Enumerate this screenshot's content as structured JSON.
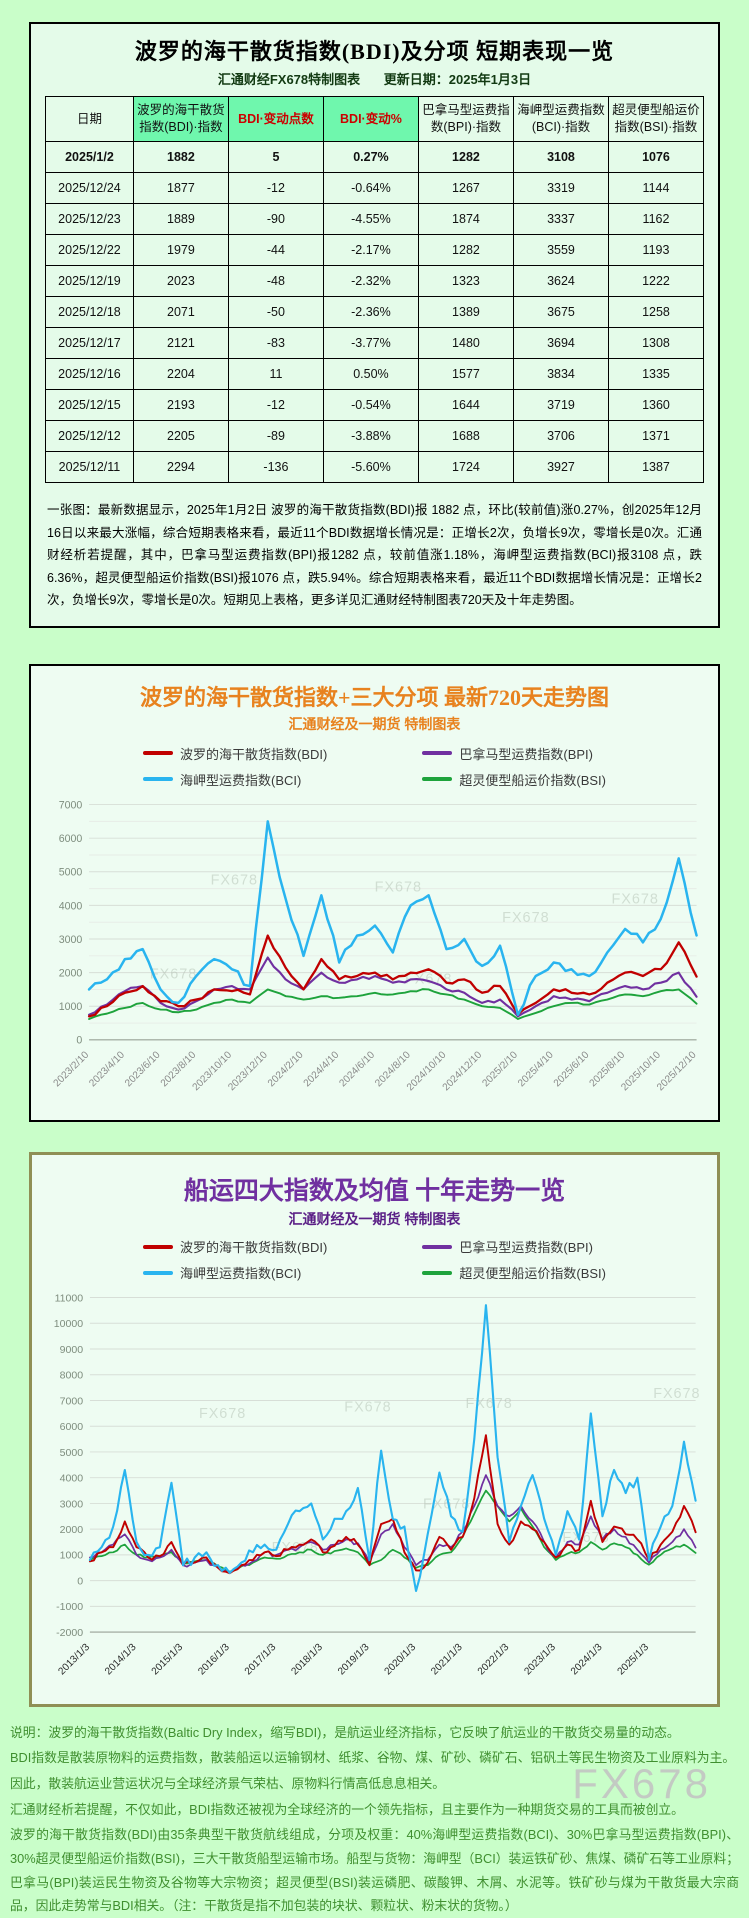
{
  "page": {
    "watermark": "FX678",
    "background": "#c9fec9"
  },
  "summary_card": {
    "title": "波罗的海干散货指数(BDI)及分项  短期表现一览",
    "subtitle_left": "汇通财经FX678特制图表",
    "subtitle_right": "更新日期：2025年1月3日",
    "table": {
      "headers": [
        "日期",
        "波罗的海干散货指数(BDI)·指数",
        "BDI·变动点数",
        "BDI·变动%",
        "巴拿马型运费指数(BPI)·指数",
        "海岬型运费指数(BCI)·指数",
        "超灵便型船运价指数(BSI)·指数"
      ],
      "highlight_green": "#6ff7ad",
      "rows": [
        {
          "cells": [
            "2025/1/2",
            "1882",
            "5",
            "0.27%",
            "1282",
            "3108",
            "1076"
          ]
        },
        {
          "cells": [
            "2025/12/24",
            "1877",
            "-12",
            "-0.64%",
            "1267",
            "3319",
            "1144"
          ]
        },
        {
          "cells": [
            "2025/12/23",
            "1889",
            "-90",
            "-4.55%",
            "1874",
            "3337",
            "1162"
          ]
        },
        {
          "cells": [
            "2025/12/22",
            "1979",
            "-44",
            "-2.17%",
            "1282",
            "3559",
            "1193"
          ]
        },
        {
          "cells": [
            "2025/12/19",
            "2023",
            "-48",
            "-2.32%",
            "1323",
            "3624",
            "1222"
          ]
        },
        {
          "cells": [
            "2025/12/18",
            "2071",
            "-50",
            "-2.36%",
            "1389",
            "3675",
            "1258"
          ]
        },
        {
          "cells": [
            "2025/12/17",
            "2121",
            "-83",
            "-3.77%",
            "1480",
            "3694",
            "1308"
          ]
        },
        {
          "cells": [
            "2025/12/16",
            "2204",
            "11",
            "0.50%",
            "1577",
            "3834",
            "1335"
          ]
        },
        {
          "cells": [
            "2025/12/15",
            "2193",
            "-12",
            "-0.54%",
            "1644",
            "3719",
            "1360"
          ]
        },
        {
          "cells": [
            "2025/12/12",
            "2205",
            "-89",
            "-3.88%",
            "1688",
            "3706",
            "1371"
          ]
        },
        {
          "cells": [
            "2025/12/11",
            "2294",
            "-136",
            "-5.60%",
            "1724",
            "3927",
            "1387"
          ]
        }
      ]
    },
    "paragraph": "一张图：最新数据显示，2025年1月2日 波罗的海干散货指数(BDI)报 1882 点，环比(较前值)涨0.27%，创2025年12月16日以来最大涨幅，综合短期表格来看，最近11个BDI数据增长情况是：正增长2次，负增长9次，零增长是0次。汇通财经析若提醒，其中，巴拿马型运费指数(BPI)报1282 点，较前值涨1.18%，海岬型运费指数(BCI)报3108 点，跌6.36%，超灵便型船运价指数(BSI)报1076 点，跌5.94%。综合短期表格来看，最近11个BDI数据增长情况是：正增长2次，负增长9次，零增长是0次。短期见上表格，更多详见汇通财经特制图表720天及十年走势图。"
  },
  "chart_data": [
    {
      "type": "line",
      "title": "波罗的海干散货指数+三大分项  最新720天走势图",
      "subtitle": "汇通财经及一期货  特制图表",
      "ylim": [
        0,
        7000
      ],
      "ytick_step": 1000,
      "grid": true,
      "legend_position": "top",
      "x_label_every": 2,
      "x_labels": [
        "2023/2/10",
        "2023/4/10",
        "2023/6/10",
        "2023/8/10",
        "2023/10/10",
        "2023/12/10",
        "2024/2/10",
        "2024/4/10",
        "2024/6/10",
        "2024/8/10",
        "2024/10/10",
        "2024/12/10",
        "2025/2/10",
        "2025/4/10",
        "2025/6/10",
        "2025/8/10",
        "2025/10/10",
        "2025/12/10"
      ],
      "series": [
        {
          "name": "波罗的海干散货指数(BDI)",
          "color": "#c00000",
          "values": [
            700,
            1000,
            1400,
            1600,
            1150,
            1000,
            1200,
            1500,
            1450,
            1350,
            3100,
            2150,
            1500,
            2400,
            1800,
            1900,
            2000,
            1800,
            2000,
            2100,
            1700,
            1800,
            1400,
            1600,
            760,
            1100,
            1500,
            1400,
            1350,
            1700,
            2000,
            1900,
            2100,
            2900,
            1882
          ]
        },
        {
          "name": "巴拿马型运费指数(BPI)",
          "color": "#7030a0",
          "values": [
            750,
            1050,
            1450,
            1600,
            1100,
            900,
            1150,
            1500,
            1600,
            1500,
            2450,
            1800,
            1500,
            2000,
            1700,
            1800,
            1900,
            1700,
            1800,
            1750,
            1500,
            1400,
            1100,
            1200,
            700,
            1000,
            1300,
            1200,
            1150,
            1400,
            1600,
            1500,
            1700,
            2000,
            1282
          ]
        },
        {
          "name": "海岬型运费指数(BCI)",
          "color": "#29b4ef",
          "values": [
            1500,
            1800,
            2400,
            2700,
            1500,
            1100,
            1900,
            2400,
            2100,
            1600,
            6500,
            4200,
            2500,
            4300,
            2300,
            3100,
            3400,
            2600,
            4000,
            4300,
            2700,
            3000,
            2200,
            2800,
            750,
            1900,
            2300,
            2100,
            1900,
            2600,
            3300,
            2900,
            3600,
            5400,
            3108
          ]
        },
        {
          "name": "超灵便型船运价指数(BSI)",
          "color": "#1ea33c",
          "values": [
            620,
            780,
            950,
            1100,
            900,
            820,
            900,
            1100,
            1200,
            1100,
            1500,
            1300,
            1200,
            1300,
            1250,
            1300,
            1400,
            1350,
            1450,
            1500,
            1350,
            1200,
            1000,
            950,
            620,
            800,
            1000,
            1100,
            1050,
            1200,
            1350,
            1300,
            1450,
            1500,
            1076
          ]
        }
      ]
    },
    {
      "type": "line",
      "title": "船运四大指数及均值 十年走势一览",
      "subtitle": "汇通财经及一期货 特制图表",
      "ylim": [
        -2000,
        11000
      ],
      "ytick_step": 1000,
      "grid": true,
      "legend_position": "top",
      "x_label_every": 4,
      "x_labels": [
        "2013/1/3",
        "2014/1/3",
        "2015/1/3",
        "2016/1/3",
        "2017/1/3",
        "2018/1/3",
        "2019/1/3",
        "2020/1/3",
        "2021/1/3",
        "2022/1/3",
        "2023/1/3",
        "2024/1/3",
        "2025/1/3"
      ],
      "series": [
        {
          "name": "波罗的海干散货指数(BDI)",
          "color": "#c00000",
          "values": [
            750,
            1100,
            1300,
            2300,
            1300,
            900,
            950,
            1500,
            600,
            700,
            900,
            500,
            290,
            600,
            800,
            1100,
            950,
            1200,
            1400,
            1600,
            1100,
            1350,
            1700,
            1400,
            600,
            2200,
            2400,
            1100,
            400,
            700,
            1700,
            1200,
            1700,
            3200,
            5650,
            2200,
            1400,
            2300,
            2000,
            1500,
            900,
            1400,
            1200,
            3100,
            1500,
            2100,
            1800,
            1600,
            800,
            1400,
            1900,
            2900,
            1882
          ]
        },
        {
          "name": "巴拿马型运费指数(BPI)",
          "color": "#7030a0",
          "values": [
            900,
            1100,
            1400,
            1800,
            1000,
            800,
            900,
            1200,
            600,
            700,
            800,
            500,
            300,
            600,
            750,
            1100,
            1000,
            1200,
            1300,
            1500,
            1200,
            1400,
            1600,
            1450,
            700,
            1800,
            2200,
            1300,
            600,
            800,
            1400,
            1300,
            1900,
            2900,
            4100,
            2900,
            2500,
            2900,
            2300,
            1500,
            900,
            1500,
            1400,
            2500,
            1600,
            2000,
            1700,
            1200,
            700,
            1200,
            1500,
            2000,
            1282
          ]
        },
        {
          "name": "海岬型运费指数(BCI)",
          "color": "#29b4ef",
          "values": [
            800,
            1300,
            2100,
            4300,
            1500,
            1000,
            1300,
            3800,
            600,
            900,
            1100,
            600,
            300,
            700,
            1100,
            1400,
            1200,
            2200,
            2700,
            3000,
            1600,
            2400,
            2700,
            3600,
            800,
            5050,
            2400,
            2100,
            -400,
            1800,
            4200,
            2500,
            1900,
            5500,
            10700,
            4800,
            1500,
            2900,
            4100,
            2400,
            1000,
            2700,
            1600,
            6500,
            2500,
            4300,
            3400,
            4000,
            800,
            2100,
            2900,
            5400,
            3108
          ]
        },
        {
          "name": "超灵便型船运价指数(BSI)",
          "color": "#1ea33c",
          "values": [
            800,
            950,
            1100,
            1400,
            1000,
            900,
            950,
            1100,
            700,
            750,
            800,
            550,
            350,
            550,
            700,
            900,
            850,
            1000,
            1100,
            1200,
            1000,
            1150,
            1250,
            1100,
            600,
            800,
            1200,
            900,
            500,
            600,
            1000,
            1100,
            1700,
            2600,
            3500,
            2900,
            2300,
            2800,
            2100,
            1300,
            800,
            1050,
            1100,
            1500,
            1200,
            1450,
            1300,
            1000,
            620,
            1000,
            1250,
            1400,
            1076
          ]
        }
      ]
    }
  ],
  "footnote": {
    "lines": [
      "说明：波罗的海干散货指数(Baltic Dry Index，缩写BDI)，是航运业经济指标，它反映了航运业的干散货交易量的动态。",
      "BDI指数是散装原物料的运费指数，散装船运以运输钢材、纸浆、谷物、煤、矿砂、磷矿石、铝矾土等民生物资及工业原料为主。",
      "因此，散装航运业营运状况与全球经济景气荣枯、原物料行情高低息息相关。",
      "汇通财经析若提醒，不仅如此，BDI指数还被视为全球经济的一个领先指标，且主要作为一种期货交易的工具而被创立。",
      "波罗的海干散货指数(BDI)由35条典型干散货航线组成，分项及权重：40%海岬型运费指数(BCI)、30%巴拿马型运费指数(BPI)、30%超灵便型船运价指数(BSI)，三大干散货船型运输市场。船型与货物：海岬型（BCI）装运铁矿砂、焦煤、磷矿石等工业原料；巴拿马(BPI)装运民生物资及谷物等大宗物资；超灵便型(BSI)装运磷肥、碳酸钾、木屑、水泥等。铁矿砂与煤为干散货最大宗商品，因此走势常与BDI相关。（注：干散货是指不加包装的块状、颗粒状、粉末状的货物。）"
    ]
  }
}
